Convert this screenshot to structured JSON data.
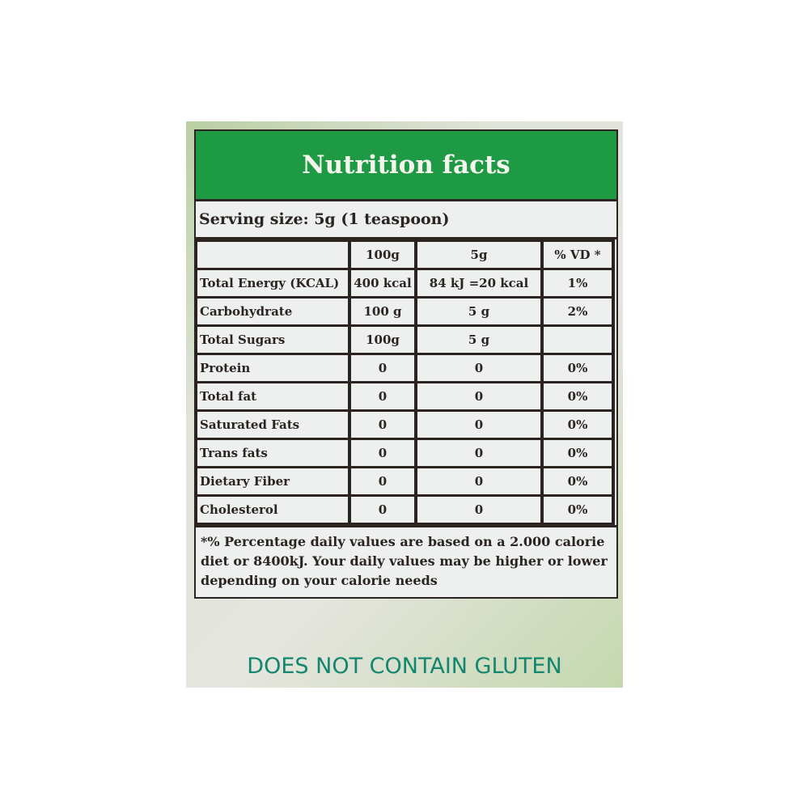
{
  "title": "Nutrition facts",
  "serving": "Serving size: 5g (1 teaspoon)",
  "columns": [
    "",
    "100g",
    "5g",
    "% VD *"
  ],
  "rows": [
    [
      "Total Energy (KCAL)",
      "400 kcal",
      "84 kJ =20 kcal",
      "1%"
    ],
    [
      "Carbohydrate",
      "100 g",
      "5 g",
      "2%"
    ],
    [
      "Total Sugars",
      "100g",
      "5 g",
      ""
    ],
    [
      "Protein",
      "0",
      "0",
      "0%"
    ],
    [
      "Total fat",
      "0",
      "0",
      "0%"
    ],
    [
      "Saturated Fats",
      "0",
      "0",
      "0%"
    ],
    [
      "Trans fats",
      "0",
      "0",
      "0%"
    ],
    [
      "Dietary Fiber",
      "0",
      "0",
      "0%"
    ],
    [
      "Cholesterol",
      "0",
      "0",
      "0%"
    ]
  ],
  "footnote": "*% Percentage daily values are based on a 2.000 calorie diet or 8400kJ. Your daily values may be higher or lower depending on your calorie needs",
  "claim": "DOES NOT CONTAIN GLUTEN",
  "colors": {
    "header": "#1f9a44",
    "claim": "#13866f"
  }
}
